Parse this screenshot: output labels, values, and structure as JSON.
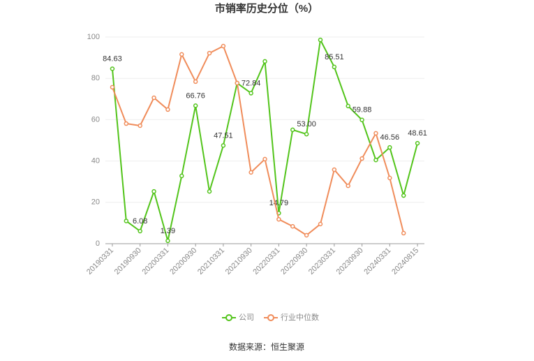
{
  "chart_data": {
    "type": "line",
    "title": "市销率历史分位（%）",
    "categories": [
      "20190331",
      null,
      "20190930",
      null,
      "20200331",
      null,
      "20200930",
      null,
      "20210331",
      null,
      "20210930",
      null,
      "20220331",
      null,
      "20220930",
      null,
      "20230331",
      null,
      "20230930",
      null,
      "20240331",
      null,
      "20240815"
    ],
    "series": [
      {
        "name": "公司",
        "color": "#52c41a",
        "values": [
          84.63,
          11,
          6.08,
          25.3,
          1.39,
          32.8,
          66.76,
          25.3,
          47.51,
          77.7,
          72.84,
          88.2,
          14.79,
          55.1,
          53.0,
          98.6,
          85.51,
          66.6,
          59.88,
          40.5,
          46.56,
          23.3,
          48.61
        ],
        "value_labels": [
          "84.63",
          null,
          "6.08",
          null,
          "1.39",
          null,
          "66.76",
          null,
          "47.51",
          null,
          "72.84",
          null,
          "14.79",
          null,
          "53.00",
          null,
          "85.51",
          null,
          "59.88",
          null,
          "46.56",
          null,
          "48.61"
        ]
      },
      {
        "name": "行业中位数",
        "color": "#f08c5a",
        "values": [
          75.7,
          58.1,
          57.1,
          70.6,
          64.9,
          91.6,
          78.4,
          92.2,
          95.6,
          77.7,
          34.5,
          40.9,
          11.8,
          8.4,
          4.1,
          9.5,
          35.8,
          28,
          41.2,
          53.4,
          31.8,
          5.1,
          null
        ]
      }
    ],
    "ylim": [
      0,
      100
    ],
    "yticks": [
      0,
      20,
      40,
      60,
      80,
      100
    ],
    "grid": true,
    "source": "数据来源：恒生聚源"
  }
}
